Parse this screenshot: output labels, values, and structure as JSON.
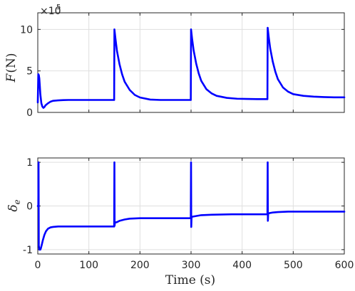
{
  "chart_data": [
    {
      "type": "line",
      "ylabel_main": "F",
      "ylabel_unit": "(N)",
      "exponent_base": "×10",
      "exponent_power": "5",
      "xlim": [
        0,
        600
      ],
      "ylim": [
        0,
        12
      ],
      "xticks": [
        0,
        100,
        200,
        300,
        400,
        500,
        600
      ],
      "xtick_labels": [
        "",
        "",
        "",
        "",
        "",
        "",
        ""
      ],
      "yticks": [
        0,
        5,
        10
      ],
      "ytick_labels": [
        "0",
        "5",
        "10"
      ],
      "grid": true,
      "series_color": "#0000ff",
      "series": [
        {
          "x": [
            0,
            1,
            2,
            3,
            4,
            5,
            7,
            9,
            11,
            13,
            15,
            20,
            25,
            30,
            40,
            50,
            60,
            80,
            100,
            120,
            149.5,
            150,
            152,
            155,
            160,
            165,
            170,
            180,
            190,
            200,
            220,
            240,
            260,
            280,
            299.5,
            300,
            302,
            305,
            310,
            315,
            320,
            330,
            340,
            350,
            370,
            390,
            410,
            430,
            449.5,
            450,
            452,
            455,
            460,
            465,
            470,
            480,
            490,
            500,
            520,
            540,
            560,
            580,
            600
          ],
          "y": [
            1.2,
            4.6,
            4.5,
            4.1,
            3.2,
            2.2,
            1.1,
            0.7,
            0.55,
            0.65,
            0.85,
            1.1,
            1.3,
            1.4,
            1.45,
            1.48,
            1.5,
            1.5,
            1.5,
            1.5,
            1.5,
            10.0,
            8.9,
            7.4,
            5.8,
            4.6,
            3.7,
            2.7,
            2.1,
            1.8,
            1.55,
            1.5,
            1.5,
            1.5,
            1.5,
            10.0,
            8.9,
            7.5,
            5.9,
            4.7,
            3.8,
            2.8,
            2.3,
            2.0,
            1.75,
            1.65,
            1.62,
            1.6,
            1.6,
            10.2,
            9.1,
            7.7,
            6.1,
            4.9,
            4.0,
            3.0,
            2.5,
            2.2,
            2.0,
            1.9,
            1.85,
            1.82,
            1.82
          ]
        }
      ]
    },
    {
      "type": "line",
      "ylabel_main": "δ",
      "ylabel_sub": "e",
      "xlabel": "Time (s)",
      "xlim": [
        0,
        600
      ],
      "ylim": [
        -1.1,
        1.1
      ],
      "xticks": [
        0,
        100,
        200,
        300,
        400,
        500,
        600
      ],
      "xtick_labels": [
        "0",
        "100",
        "200",
        "300",
        "400",
        "500",
        "600"
      ],
      "yticks": [
        -1,
        0,
        1
      ],
      "ytick_labels": [
        "-1",
        "0",
        "1"
      ],
      "grid": true,
      "series_color": "#0000ff",
      "series": [
        {
          "x": [
            0,
            1,
            1.5,
            2,
            3,
            4,
            5,
            6,
            8,
            10,
            13,
            16,
            20,
            25,
            30,
            40,
            60,
            100,
            149.5,
            150,
            150.4,
            151,
            155,
            160,
            170,
            180,
            200,
            240,
            299.5,
            300,
            300.4,
            301,
            305,
            310,
            320,
            340,
            380,
            449.5,
            450,
            450.4,
            451,
            455,
            460,
            470,
            490,
            520,
            560,
            600
          ],
          "y": [
            0,
            0,
            1.0,
            -0.9,
            -1.0,
            -1.0,
            -1.0,
            -0.97,
            -0.88,
            -0.78,
            -0.66,
            -0.58,
            -0.52,
            -0.49,
            -0.48,
            -0.47,
            -0.47,
            -0.47,
            -0.47,
            1.0,
            -0.45,
            -0.38,
            -0.37,
            -0.34,
            -0.31,
            -0.29,
            -0.28,
            -0.28,
            -0.28,
            1.0,
            -0.48,
            -0.25,
            -0.24,
            -0.23,
            -0.21,
            -0.2,
            -0.19,
            -0.19,
            1.0,
            -0.34,
            -0.17,
            -0.16,
            -0.15,
            -0.14,
            -0.13,
            -0.13,
            -0.13,
            -0.13
          ]
        }
      ]
    }
  ]
}
